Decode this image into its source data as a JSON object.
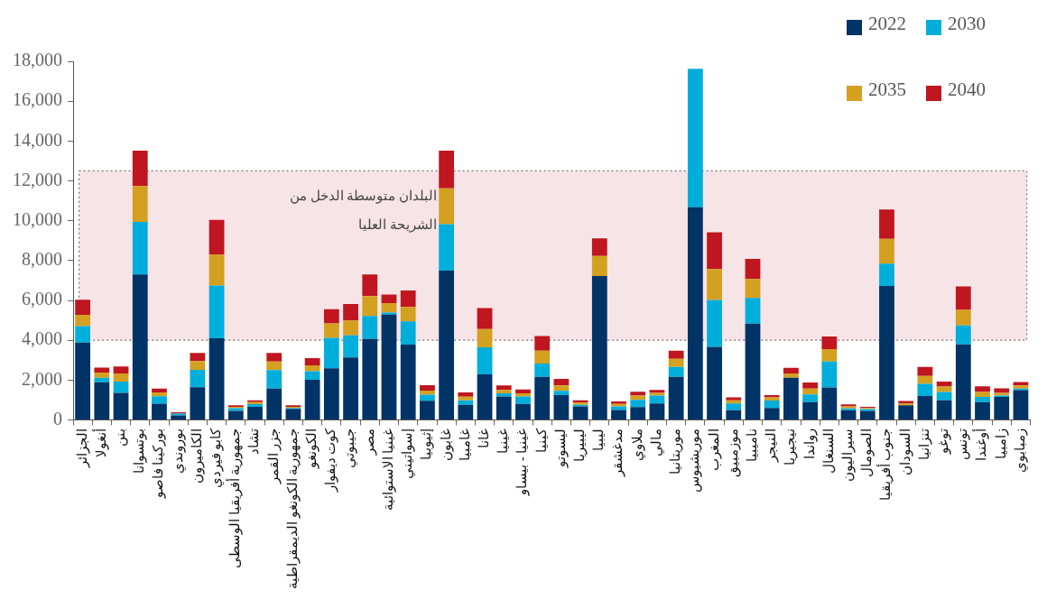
{
  "chart_data": {
    "type": "bar",
    "stacked": true,
    "categories": [
      "الجزائر",
      "أنغولا",
      "بنن",
      "بوتسوانا",
      "بوركينا فاصو",
      "بوروندي",
      "الكاميرون",
      "كابو فيردي",
      "جمهورية أفريقيا الوسطى",
      "تشاد",
      "جزر القمر",
      "جمهورية الكونغو الديمقراطية",
      "الكونغو",
      "كوت ديفوار",
      "جيبوتي",
      "مصر",
      "غينيا الاستوائية",
      "إسواتيني",
      "إثيوبيا",
      "غابون",
      "غامبيا",
      "غانا",
      "غينيا",
      "غينيا - بيساو",
      "كينيا",
      "ليسوتو",
      "ليبيريا",
      "ليبيا",
      "مدغشقر",
      "ملاوي",
      "مالي",
      "موريتانيا",
      "موريشيوس",
      "المغرب",
      "موزمبيق",
      "ناميبيا",
      "النيجر",
      "نيجيريا",
      "رواندا",
      "السنغال",
      "سيراليون",
      "الصومال",
      "جنوب أفريقيا",
      "السودان",
      "تنزانيا",
      "توغو",
      "تونس",
      "أوغندا",
      "زامبيا",
      "زمبابوي"
    ],
    "series": [
      {
        "name": "2022",
        "color": "#003366",
        "values": [
          3880,
          1890,
          1360,
          7300,
          810,
          230,
          1640,
          4100,
          450,
          660,
          1570,
          550,
          2020,
          2590,
          3140,
          4060,
          5290,
          3780,
          960,
          7500,
          760,
          2290,
          1180,
          800,
          2160,
          1240,
          680,
          7220,
          500,
          640,
          830,
          2160,
          10680,
          3670,
          490,
          4830,
          600,
          2120,
          890,
          1630,
          490,
          450,
          6720,
          740,
          1200,
          990,
          3790,
          890,
          1150,
          1500
        ]
      },
      {
        "name": "2030",
        "color": "#00aedb",
        "values": [
          830,
          230,
          570,
          2640,
          380,
          90,
          870,
          2650,
          140,
          130,
          930,
          50,
          420,
          1530,
          1110,
          1160,
          100,
          1170,
          310,
          2330,
          220,
          1360,
          160,
          380,
          670,
          220,
          80,
          0,
          180,
          370,
          390,
          500,
          6950,
          2350,
          340,
          1290,
          370,
          0,
          390,
          1300,
          90,
          90,
          1120,
          0,
          610,
          410,
          950,
          260,
          70,
          70
        ]
      },
      {
        "name": "2035",
        "color": "#d4a020",
        "values": [
          560,
          260,
          400,
          1800,
          190,
          null,
          440,
          1550,
          70,
          100,
          430,
          60,
          300,
          720,
          740,
          1000,
          470,
          720,
          200,
          1800,
          190,
          910,
          170,
          160,
          650,
          270,
          110,
          1010,
          120,
          210,
          140,
          410,
          null,
          1550,
          160,
          950,
          160,
          210,
          290,
          620,
          100,
          60,
          1250,
          90,
          400,
          270,
          790,
          250,
          140,
          160
        ]
      },
      {
        "name": "2040",
        "color": "#c0161f",
        "values": [
          760,
          250,
          350,
          1780,
          190,
          60,
          410,
          1740,
          80,
          90,
          430,
          80,
          360,
          720,
          830,
          1080,
          430,
          830,
          270,
          1890,
          210,
          1050,
          220,
          190,
          730,
          330,
          120,
          880,
          130,
          200,
          150,
          410,
          null,
          1850,
          140,
          1010,
          110,
          290,
          310,
          640,
          100,
          60,
          1470,
          120,
          450,
          250,
          1170,
          290,
          230,
          170
        ]
      }
    ],
    "ylim": [
      0,
      18000
    ],
    "yticks": [
      {
        "value": 0,
        "label": "0"
      },
      {
        "value": 2000,
        "label": "2,000"
      },
      {
        "value": 4000,
        "label": "4,000"
      },
      {
        "value": 6000,
        "label": "6,000"
      },
      {
        "value": 8000,
        "label": "8,000"
      },
      {
        "value": 10000,
        "label": "10,000"
      },
      {
        "value": 12000,
        "label": "12,000"
      },
      {
        "value": 14000,
        "label": "14,000"
      },
      {
        "value": 16000,
        "label": "16,000"
      },
      {
        "value": 18000,
        "label": "18,000"
      }
    ],
    "bands": [
      {
        "axis": "y",
        "from": 4000,
        "to": 12500,
        "label": "البلدان متوسطة الدخل من الشريحة العليا",
        "color": "#f7e4e6"
      }
    ],
    "legend": "top right",
    "grid": false
  }
}
